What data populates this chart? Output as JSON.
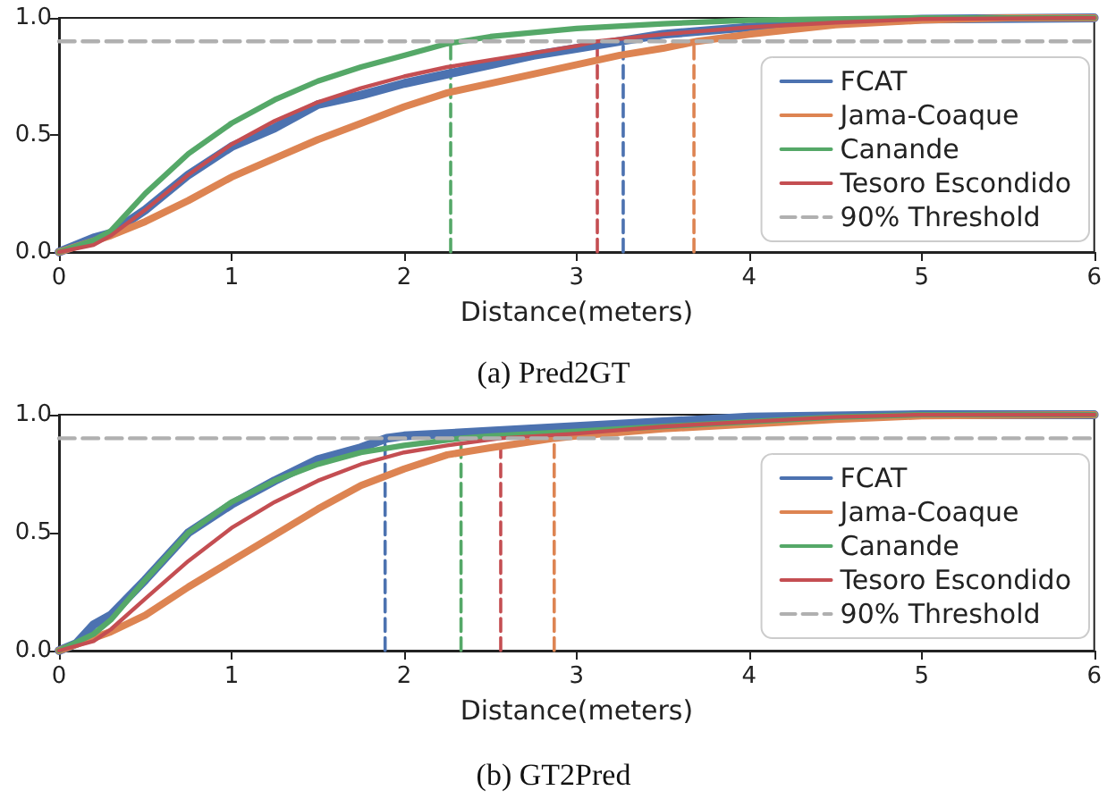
{
  "chart_data": [
    {
      "type": "line",
      "title": "(a) Pred2GT",
      "xlabel": "Distance(meters)",
      "xlim": [
        0,
        6
      ],
      "xticks": [
        0,
        1,
        2,
        3,
        4,
        5,
        6
      ],
      "ylim": [
        0,
        1
      ],
      "yticks": [
        {
          "value": 0,
          "label": "0.0"
        },
        {
          "value": 0.5,
          "label": "0.5"
        },
        {
          "value": 1,
          "label": "1.0"
        }
      ],
      "legend": "right",
      "grid": false,
      "marker": "none",
      "series": [
        {
          "name": "FCAT",
          "color": "#4c72b0",
          "x": [
            0,
            0.2,
            0.3,
            0.5,
            0.75,
            1,
            1.25,
            1.5,
            1.75,
            2,
            2.25,
            2.5,
            2.75,
            3,
            3.25,
            3.5,
            4,
            4.5,
            5,
            6
          ],
          "values": [
            0,
            0.06,
            0.08,
            0.18,
            0.33,
            0.45,
            0.53,
            0.63,
            0.67,
            0.72,
            0.76,
            0.8,
            0.84,
            0.87,
            0.9,
            0.93,
            0.96,
            0.98,
            0.995,
            1
          ]
        },
        {
          "name": "Jama-Coaque",
          "color": "#dd8452",
          "x": [
            0,
            0.3,
            0.5,
            0.75,
            1,
            1.25,
            1.5,
            1.75,
            2,
            2.25,
            2.5,
            2.75,
            3,
            3.25,
            3.5,
            3.7,
            4,
            4.5,
            5,
            5.5,
            6
          ],
          "values": [
            0,
            0.07,
            0.13,
            0.22,
            0.32,
            0.4,
            0.48,
            0.55,
            0.62,
            0.68,
            0.72,
            0.76,
            0.8,
            0.84,
            0.87,
            0.9,
            0.93,
            0.97,
            0.99,
            1,
            1
          ]
        },
        {
          "name": "Canande",
          "color": "#55a868",
          "x": [
            0,
            0.2,
            0.3,
            0.5,
            0.75,
            1,
            1.25,
            1.5,
            1.75,
            2,
            2.25,
            2.5,
            3,
            3.5,
            4,
            5,
            6
          ],
          "values": [
            0,
            0.05,
            0.09,
            0.25,
            0.42,
            0.55,
            0.65,
            0.73,
            0.79,
            0.84,
            0.89,
            0.92,
            0.955,
            0.975,
            0.99,
            1,
            1
          ]
        },
        {
          "name": "Tesoro Escondido",
          "color": "#c44e52",
          "x": [
            0,
            0.2,
            0.3,
            0.5,
            0.75,
            1,
            1.25,
            1.5,
            1.75,
            2,
            2.25,
            2.5,
            2.75,
            3,
            3.12,
            3.5,
            4,
            4.5,
            5,
            6
          ],
          "values": [
            0,
            0.03,
            0.07,
            0.18,
            0.33,
            0.46,
            0.56,
            0.64,
            0.7,
            0.75,
            0.79,
            0.82,
            0.85,
            0.88,
            0.9,
            0.93,
            0.96,
            0.98,
            0.995,
            1
          ]
        },
        {
          "name": "90% Threshold",
          "color": "#b0b0b0",
          "line_style": "dashed",
          "x": [
            0,
            6
          ],
          "values": [
            0.9,
            0.9
          ]
        },
        {
          "color": "#55a868",
          "line_style": "dashed",
          "x": [
            2.27,
            2.27
          ],
          "values": [
            0,
            0.9
          ]
        },
        {
          "color": "#c44e52",
          "line_style": "dashed",
          "x": [
            3.12,
            3.12
          ],
          "values": [
            0,
            0.9
          ]
        },
        {
          "color": "#4c72b0",
          "line_style": "dashed",
          "x": [
            3.27,
            3.27
          ],
          "values": [
            0,
            0.9
          ]
        },
        {
          "color": "#dd8452",
          "line_style": "dashed",
          "x": [
            3.68,
            3.68
          ],
          "values": [
            0,
            0.9
          ]
        }
      ]
    },
    {
      "type": "line",
      "title": "(b) GT2Pred",
      "xlabel": "Distance(meters)",
      "xlim": [
        0,
        6
      ],
      "xticks": [
        0,
        1,
        2,
        3,
        4,
        5,
        6
      ],
      "ylim": [
        0,
        1
      ],
      "yticks": [
        {
          "value": 0,
          "label": "0.0"
        },
        {
          "value": 0.5,
          "label": "0.5"
        },
        {
          "value": 1,
          "label": "1.0"
        }
      ],
      "legend": "right",
      "grid": false,
      "marker": "none",
      "series": [
        {
          "name": "FCAT",
          "color": "#4c72b0",
          "x": [
            0,
            0.1,
            0.2,
            0.3,
            0.5,
            0.75,
            1,
            1.25,
            1.5,
            1.75,
            1.9,
            2,
            2.5,
            3,
            3.5,
            4,
            5,
            6
          ],
          "values": [
            0,
            0.03,
            0.11,
            0.15,
            0.3,
            0.5,
            0.62,
            0.72,
            0.81,
            0.86,
            0.9,
            0.91,
            0.93,
            0.95,
            0.97,
            0.99,
            1,
            1
          ]
        },
        {
          "name": "Jama-Coaque",
          "color": "#dd8452",
          "x": [
            0,
            0.3,
            0.5,
            0.75,
            1,
            1.25,
            1.5,
            1.75,
            2,
            2.25,
            2.5,
            2.87,
            3,
            3.5,
            4,
            4.5,
            5,
            6
          ],
          "values": [
            0,
            0.08,
            0.15,
            0.27,
            0.38,
            0.49,
            0.6,
            0.7,
            0.77,
            0.83,
            0.86,
            0.9,
            0.91,
            0.94,
            0.96,
            0.98,
            0.995,
            1
          ]
        },
        {
          "name": "Canande",
          "color": "#55a868",
          "x": [
            0,
            0.2,
            0.3,
            0.5,
            0.75,
            1,
            1.25,
            1.5,
            1.75,
            2,
            2.33,
            2.5,
            3,
            3.5,
            4,
            4.5,
            5,
            6
          ],
          "values": [
            0,
            0.07,
            0.13,
            0.3,
            0.5,
            0.63,
            0.72,
            0.79,
            0.84,
            0.87,
            0.9,
            0.91,
            0.93,
            0.95,
            0.97,
            0.99,
            1,
            1
          ]
        },
        {
          "name": "Tesoro Escondido",
          "color": "#c44e52",
          "x": [
            0,
            0.2,
            0.3,
            0.5,
            0.75,
            1,
            1.25,
            1.5,
            1.75,
            2,
            2.25,
            2.56,
            3,
            3.5,
            4,
            4.5,
            5,
            6
          ],
          "values": [
            0,
            0.04,
            0.09,
            0.22,
            0.38,
            0.52,
            0.63,
            0.72,
            0.79,
            0.84,
            0.87,
            0.9,
            0.92,
            0.95,
            0.97,
            0.99,
            1,
            1
          ]
        },
        {
          "name": "90% Threshold",
          "color": "#b0b0b0",
          "line_style": "dashed",
          "x": [
            0,
            6
          ],
          "values": [
            0.9,
            0.9
          ]
        },
        {
          "color": "#4c72b0",
          "line_style": "dashed",
          "x": [
            1.89,
            1.89
          ],
          "values": [
            0,
            0.9
          ]
        },
        {
          "color": "#55a868",
          "line_style": "dashed",
          "x": [
            2.33,
            2.33
          ],
          "values": [
            0,
            0.9
          ]
        },
        {
          "color": "#c44e52",
          "line_style": "dashed",
          "x": [
            2.56,
            2.56
          ],
          "values": [
            0,
            0.9
          ]
        },
        {
          "color": "#dd8452",
          "line_style": "dashed",
          "x": [
            2.87,
            2.87
          ],
          "values": [
            0,
            0.9
          ]
        }
      ]
    }
  ]
}
